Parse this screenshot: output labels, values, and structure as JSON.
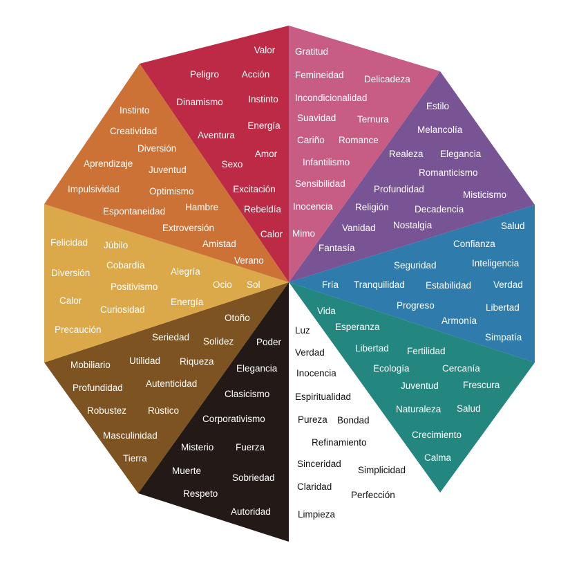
{
  "segments": [
    {
      "id": "red",
      "color": "#bd2a45",
      "text_color": "#ffffff",
      "words": [
        "Valor",
        "Peligro",
        "Acción",
        "Dinamismo",
        "Instinto",
        "Energía",
        "Aventura",
        "Amor",
        "Sexo",
        "Excitación",
        "Rebeldía",
        "Calor"
      ]
    },
    {
      "id": "pink",
      "color": "#c75c85",
      "text_color": "#ffffff",
      "words": [
        "Gratitud",
        "Femineidad",
        "Delicadeza",
        "Incondicionalidad",
        "Suavidad",
        "Ternura",
        "Cariño",
        "Romance",
        "Infantilismo",
        "Sensibilidad",
        "Inocencia",
        "Mimo"
      ]
    },
    {
      "id": "purple",
      "color": "#795495",
      "text_color": "#ffffff",
      "words": [
        "Estilo",
        "Melancolía",
        "Realeza",
        "Elegancia",
        "Romanticismo",
        "Profundidad",
        "Misticismo",
        "Religión",
        "Decadencia",
        "Nostalgia",
        "Vanidad",
        "Fantasía"
      ]
    },
    {
      "id": "blue",
      "color": "#2f7bab",
      "text_color": "#ffffff",
      "words": [
        "Salud",
        "Confianza",
        "Seguridad",
        "Inteligencia",
        "Fría",
        "Tranquilidad",
        "Estabilidad",
        "Verdad",
        "Progreso",
        "Libertad",
        "Armonía",
        "Simpatía"
      ]
    },
    {
      "id": "teal",
      "color": "#23877f",
      "text_color": "#ffffff",
      "words": [
        "Vida",
        "Esperanza",
        "Libertad",
        "Fertilidad",
        "Ecología",
        "Cercanía",
        "Juventud",
        "Frescura",
        "Naturaleza",
        "Salud",
        "Crecimiento",
        "Calma"
      ]
    },
    {
      "id": "white",
      "color": "#ffffff",
      "text_color": "#111111",
      "words": [
        "Luz",
        "Verdad",
        "Inocencia",
        "Espiritualidad",
        "Pureza",
        "Bondad",
        "Refinamiento",
        "Sinceridad",
        "Simplicidad",
        "Claridad",
        "Perfección",
        "Limpieza"
      ]
    },
    {
      "id": "black",
      "color": "#231a17",
      "text_color": "#ffffff",
      "words": [
        "Poder",
        "Elegancia",
        "Clasicismo",
        "Corporativismo",
        "Misterio",
        "Fuerza",
        "Muerte",
        "Sobriedad",
        "Respeto",
        "Autoridad"
      ]
    },
    {
      "id": "brown",
      "color": "#7c5321",
      "text_color": "#ffffff",
      "words": [
        "Otoño",
        "Seriedad",
        "Solidez",
        "Mobiliario",
        "Utilidad",
        "Riqueza",
        "Profundidad",
        "Autenticidad",
        "Robustez",
        "Rústico",
        "Masculinidad",
        "Tierra"
      ]
    },
    {
      "id": "yellow",
      "color": "#dba84a",
      "text_color": "#ffffff",
      "words": [
        "Felicidad",
        "Júbilo",
        "Cobardía",
        "Alegría",
        "Diversión",
        "Positivismo",
        "Ocio",
        "Sol",
        "Calor",
        "Curiosidad",
        "Energía",
        "Precaución"
      ]
    },
    {
      "id": "orange",
      "color": "#cc7236",
      "text_color": "#ffffff",
      "words": [
        "Instinto",
        "Creatividad",
        "Diversión",
        "Aprendizaje",
        "Juventud",
        "Impulsividad",
        "Optimismo",
        "Hambre",
        "Espontaneidad",
        "Extroversión",
        "Amistad",
        "Verano"
      ]
    }
  ]
}
